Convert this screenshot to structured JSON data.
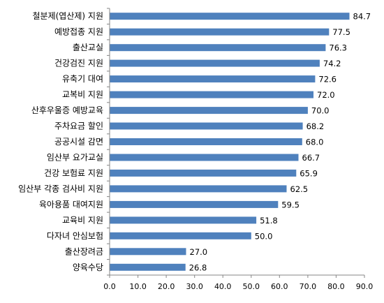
{
  "chart_data": {
    "type": "bar",
    "orientation": "horizontal",
    "categories": [
      "철분제(엽산제) 지원",
      "예방접종 지원",
      "출산교실",
      "건강검진 지원",
      "유축기 대여",
      "교복비 지원",
      "산후우울증 예방교육",
      "주차요금 할인",
      "공공시설 감면",
      "임산부 요가교실",
      "건강 보험료 지원",
      "임산부 각종 검사비 지원",
      "육아용품 대여지원",
      "교육비 지원",
      "다자녀 안심보험",
      "출산장려금",
      "양육수당"
    ],
    "values": [
      84.7,
      77.5,
      76.3,
      74.2,
      72.6,
      72.0,
      70.0,
      68.2,
      68.0,
      66.7,
      65.9,
      62.5,
      59.5,
      51.8,
      50.0,
      27.0,
      26.8
    ],
    "value_labels": [
      "84.7",
      "77.5",
      "76.3",
      "74.2",
      "72.6",
      "72.0",
      "70.0",
      "68.2",
      "68.0",
      "66.7",
      "65.9",
      "62.5",
      "59.5",
      "51.8",
      "50.0",
      "27.0",
      "26.8"
    ],
    "xlim": [
      0,
      90
    ],
    "x_ticks": [
      "0.0",
      "10.0",
      "20.0",
      "30.0",
      "40.0",
      "50.0",
      "60.0",
      "70.0",
      "80.0",
      "90.0"
    ],
    "grid": false,
    "legend": "none",
    "bar_color": "#4F81BD",
    "title": "",
    "xlabel": "",
    "ylabel": ""
  }
}
